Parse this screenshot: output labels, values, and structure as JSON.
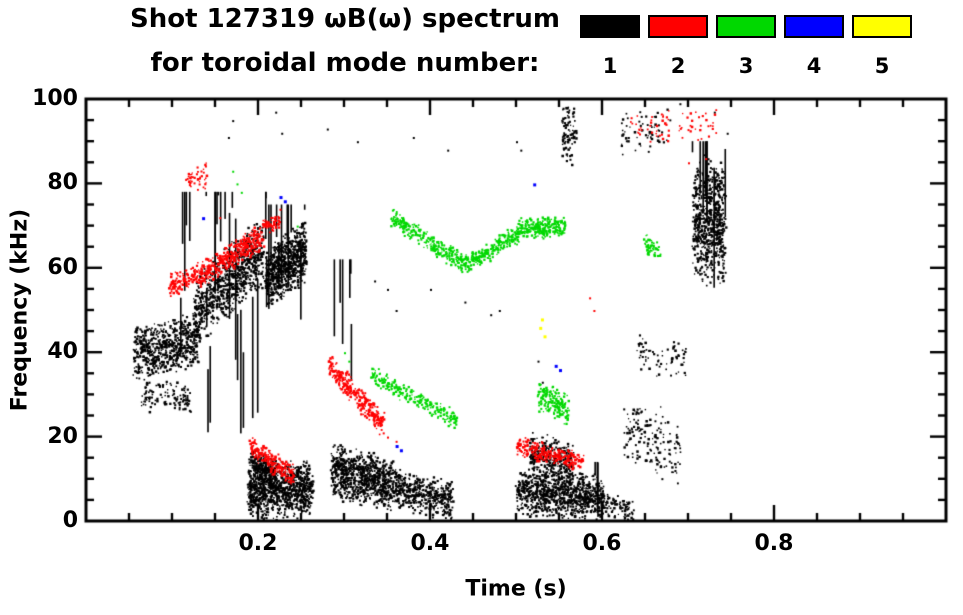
{
  "header": {
    "title_line1": "Shot 127319 ωB(ω) spectrum",
    "title_line2": "for toroidal mode number:"
  },
  "legend": {
    "entries": [
      {
        "label": "1",
        "color": "#000000"
      },
      {
        "label": "2",
        "color": "#ff0000"
      },
      {
        "label": "3",
        "color": "#00d800"
      },
      {
        "label": "4",
        "color": "#0000ff"
      },
      {
        "label": "5",
        "color": "#ffff00"
      }
    ]
  },
  "chart_data": {
    "type": "scatter",
    "title": "Shot 127319 ωB(ω) spectrum",
    "subtitle": "for toroidal mode number:",
    "xlabel": "Time (s)",
    "ylabel": "Frequency (kHz)",
    "xlim": [
      0,
      1.0
    ],
    "ylim": [
      0,
      100
    ],
    "x_minor_step": 0.05,
    "y_minor_step": 5,
    "xticks": [
      {
        "v": 0.2,
        "label": "0.2"
      },
      {
        "v": 0.4,
        "label": "0.4"
      },
      {
        "v": 0.6,
        "label": "0.6"
      },
      {
        "v": 0.8,
        "label": "0.8"
      }
    ],
    "yticks": [
      {
        "v": 0,
        "label": "0"
      },
      {
        "v": 20,
        "label": "20"
      },
      {
        "v": 40,
        "label": "40"
      },
      {
        "v": 60,
        "label": "60"
      },
      {
        "v": 80,
        "label": "80"
      },
      {
        "v": 100,
        "label": "100"
      }
    ],
    "legend_position": "top-right",
    "series": [
      {
        "name": "1",
        "color": "#000000",
        "clusters": [
          {
            "kind": "band",
            "x0": 0.055,
            "x1": 0.13,
            "f0": 40,
            "f1": 43,
            "spread": 7,
            "n": 650
          },
          {
            "kind": "band",
            "x0": 0.065,
            "x1": 0.12,
            "f0": 30,
            "f1": 29,
            "spread": 4,
            "n": 120
          },
          {
            "kind": "band",
            "x0": 0.125,
            "x1": 0.205,
            "f0": 50,
            "f1": 64,
            "spread": 9,
            "n": 800
          },
          {
            "kind": "streaks",
            "x0": 0.1,
            "x1": 0.21,
            "fmin": 20,
            "fmax": 78,
            "count": 26,
            "minlen": 8,
            "maxlen": 40
          },
          {
            "kind": "band",
            "x0": 0.208,
            "x1": 0.255,
            "f0": 58,
            "f1": 64,
            "spread": 8,
            "n": 750
          },
          {
            "kind": "streaks",
            "x0": 0.208,
            "x1": 0.26,
            "fmin": 40,
            "fmax": 75,
            "count": 10,
            "minlen": 10,
            "maxlen": 30
          },
          {
            "kind": "band",
            "x0": 0.188,
            "x1": 0.262,
            "f0": 7,
            "f1": 8,
            "spread": 7,
            "n": 950
          },
          {
            "kind": "band",
            "x0": 0.19,
            "x1": 0.22,
            "f0": 14,
            "f1": 11,
            "spread": 4,
            "n": 250
          },
          {
            "kind": "band",
            "x0": 0.285,
            "x1": 0.355,
            "f0": 12,
            "f1": 9,
            "spread": 7,
            "n": 800
          },
          {
            "kind": "band",
            "x0": 0.355,
            "x1": 0.425,
            "f0": 8,
            "f1": 5,
            "spread": 5,
            "n": 450
          },
          {
            "kind": "streaks",
            "x0": 0.285,
            "x1": 0.312,
            "fmin": 18,
            "fmax": 62,
            "count": 6,
            "minlen": 10,
            "maxlen": 35
          },
          {
            "kind": "band",
            "x0": 0.5,
            "x1": 0.6,
            "f0": 7,
            "f1": 6,
            "spread": 6,
            "n": 900
          },
          {
            "kind": "band",
            "x0": 0.515,
            "x1": 0.565,
            "f0": 16,
            "f1": 13,
            "spread": 6,
            "n": 350
          },
          {
            "kind": "band",
            "x0": 0.6,
            "x1": 0.635,
            "f0": 4,
            "f1": 3,
            "spread": 3,
            "n": 80
          },
          {
            "kind": "streaks",
            "x0": 0.588,
            "x1": 0.598,
            "fmin": 0,
            "fmax": 14,
            "count": 3,
            "minlen": 8,
            "maxlen": 14
          },
          {
            "kind": "band",
            "x0": 0.625,
            "x1": 0.69,
            "f0": 22,
            "f1": 17,
            "spread": 9,
            "n": 160
          },
          {
            "kind": "band",
            "x0": 0.64,
            "x1": 0.7,
            "f0": 40,
            "f1": 38,
            "spread": 6,
            "n": 70
          },
          {
            "kind": "band",
            "x0": 0.705,
            "x1": 0.742,
            "f0": 72,
            "f1": 70,
            "spread": 16,
            "n": 700
          },
          {
            "kind": "streaks",
            "x0": 0.7,
            "x1": 0.745,
            "fmin": 50,
            "fmax": 90,
            "count": 8,
            "minlen": 10,
            "maxlen": 30
          },
          {
            "kind": "band",
            "x0": 0.553,
            "x1": 0.568,
            "f0": 92,
            "f1": 92,
            "spread": 8,
            "n": 90
          },
          {
            "kind": "band",
            "x0": 0.62,
            "x1": 0.68,
            "f0": 92,
            "f1": 94,
            "spread": 6,
            "n": 60
          },
          {
            "kind": "specks",
            "size": 2,
            "pts": [
              [
                0.165,
                91
              ],
              [
                0.17,
                95
              ],
              [
                0.22,
                97
              ],
              [
                0.227,
                92
              ],
              [
                0.28,
                93
              ],
              [
                0.315,
                90
              ],
              [
                0.38,
                91
              ],
              [
                0.42,
                88
              ],
              [
                0.47,
                49
              ],
              [
                0.48,
                50
              ],
              [
                0.5,
                90
              ],
              [
                0.505,
                88
              ],
              [
                0.525,
                38
              ],
              [
                0.53,
                33
              ],
              [
                0.59,
                5
              ],
              [
                0.6,
                2
              ],
              [
                0.63,
                91
              ],
              [
                0.645,
                96
              ],
              [
                0.655,
                89
              ],
              [
                0.665,
                94
              ],
              [
                0.69,
                99
              ],
              [
                0.73,
                97
              ],
              [
                0.745,
                92
              ],
              [
                0.4,
                55
              ],
              [
                0.44,
                52
              ],
              [
                0.335,
                57
              ],
              [
                0.35,
                55
              ],
              [
                0.36,
                50
              ]
            ]
          }
        ]
      },
      {
        "name": "2",
        "color": "#ff0000",
        "clusters": [
          {
            "kind": "band",
            "x0": 0.095,
            "x1": 0.13,
            "f0": 56,
            "f1": 59,
            "spread": 3,
            "n": 120
          },
          {
            "kind": "band",
            "x0": 0.13,
            "x1": 0.205,
            "f0": 58,
            "f1": 68,
            "spread": 3.5,
            "n": 400
          },
          {
            "kind": "band",
            "x0": 0.115,
            "x1": 0.14,
            "f0": 80,
            "f1": 82,
            "spread": 4,
            "n": 45
          },
          {
            "kind": "band",
            "x0": 0.205,
            "x1": 0.225,
            "f0": 70,
            "f1": 71,
            "spread": 2,
            "n": 60
          },
          {
            "kind": "band",
            "x0": 0.19,
            "x1": 0.24,
            "f0": 18,
            "f1": 11,
            "spread": 3,
            "n": 220
          },
          {
            "kind": "band",
            "x0": 0.282,
            "x1": 0.345,
            "f0": 37,
            "f1": 23,
            "spread": 3.5,
            "n": 300
          },
          {
            "kind": "band",
            "x0": 0.5,
            "x1": 0.578,
            "f0": 18,
            "f1": 14,
            "spread": 2.5,
            "n": 260
          },
          {
            "kind": "band",
            "x0": 0.63,
            "x1": 0.735,
            "f0": 93,
            "f1": 94,
            "spread": 4,
            "n": 70
          },
          {
            "kind": "specks",
            "size": 2,
            "pts": [
              [
                0.585,
                53
              ],
              [
                0.59,
                50
              ],
              [
                0.225,
                74
              ],
              [
                0.155,
                72
              ],
              [
                0.7,
                85
              ],
              [
                0.72,
                86
              ],
              [
                0.345,
                21
              ],
              [
                0.35,
                20
              ],
              [
                0.36,
                19
              ]
            ]
          }
        ]
      },
      {
        "name": "3",
        "color": "#00d800",
        "clusters": [
          {
            "kind": "band",
            "x0": 0.355,
            "x1": 0.44,
            "f0": 72,
            "f1": 61,
            "spread": 2.5,
            "n": 280
          },
          {
            "kind": "band",
            "x0": 0.44,
            "x1": 0.5,
            "f0": 61,
            "f1": 68,
            "spread": 2.5,
            "n": 240
          },
          {
            "kind": "band",
            "x0": 0.5,
            "x1": 0.557,
            "f0": 69,
            "f1": 70,
            "spread": 3,
            "n": 260
          },
          {
            "kind": "band",
            "x0": 0.33,
            "x1": 0.43,
            "f0": 35,
            "f1": 24,
            "spread": 2.5,
            "n": 240
          },
          {
            "kind": "band",
            "x0": 0.525,
            "x1": 0.56,
            "f0": 30,
            "f1": 26,
            "spread": 4,
            "n": 180
          },
          {
            "kind": "band",
            "x0": 0.648,
            "x1": 0.668,
            "f0": 66,
            "f1": 64,
            "spread": 3,
            "n": 50
          },
          {
            "kind": "specks",
            "size": 2,
            "pts": [
              [
                0.17,
                83
              ],
              [
                0.175,
                80
              ],
              [
                0.18,
                78
              ],
              [
                0.3,
                40
              ],
              [
                0.305,
                38
              ],
              [
                0.36,
                73
              ],
              [
                0.505,
                72
              ],
              [
                0.245,
                70
              ]
            ]
          }
        ]
      },
      {
        "name": "4",
        "color": "#0000ff",
        "clusters": [
          {
            "kind": "specks",
            "size": 3,
            "pts": [
              [
                0.225,
                77
              ],
              [
                0.23,
                76
              ],
              [
                0.36,
                18
              ],
              [
                0.365,
                17
              ],
              [
                0.52,
                80
              ],
              [
                0.545,
                37
              ],
              [
                0.55,
                36
              ],
              [
                0.135,
                72
              ]
            ]
          }
        ]
      },
      {
        "name": "5",
        "color": "#ffff00",
        "clusters": [
          {
            "kind": "specks",
            "size": 3,
            "pts": [
              [
                0.527,
                46
              ],
              [
                0.532,
                44
              ],
              [
                0.529,
                48
              ]
            ]
          }
        ]
      }
    ]
  }
}
